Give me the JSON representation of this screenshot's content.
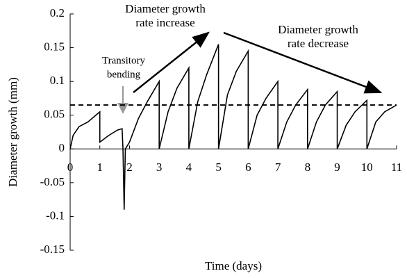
{
  "chart_data": {
    "type": "line",
    "xlabel": "Time (days)",
    "ylabel": "Diameter growth (mm)",
    "xlim": [
      0,
      11
    ],
    "xticks": [
      0,
      1,
      2,
      3,
      4,
      5,
      6,
      7,
      8,
      9,
      10,
      11
    ],
    "ylim": [
      -0.15,
      0.2
    ],
    "yticks": [
      -0.15,
      -0.1,
      -0.05,
      0,
      0.05,
      0.1,
      0.15,
      0.2
    ],
    "reference_line": {
      "value": 0.065,
      "style": "dashed",
      "color": "#000000"
    },
    "annotations": [
      {
        "lines": [
          "Diameter growth",
          "rate increase"
        ],
        "color": "#000000"
      },
      {
        "lines": [
          "Diameter growth",
          "rate decrease"
        ],
        "color": "#000000"
      },
      {
        "lines": [
          "Transitory",
          "bending"
        ],
        "color": "#999999"
      }
    ],
    "series": [
      {
        "color": "#000000",
        "x": [
          0,
          0.1,
          0.3,
          0.6,
          1,
          1,
          1.3,
          1.6,
          1.75,
          1.78,
          1.82,
          1.86,
          2,
          2.3,
          2.6,
          3,
          3,
          3.3,
          3.6,
          4,
          4,
          4.3,
          4.6,
          5,
          5,
          5.3,
          5.6,
          6,
          6,
          6.3,
          6.6,
          7,
          7,
          7.3,
          7.6,
          8,
          8,
          8.3,
          8.6,
          9,
          9,
          9.3,
          9.6,
          10,
          10,
          10.3,
          10.6,
          11
        ],
        "values": [
          0,
          0.02,
          0.033,
          0.04,
          0.055,
          0.01,
          0.02,
          0.028,
          0.03,
          0,
          -0.09,
          0,
          0.01,
          0.045,
          0.07,
          0.1,
          0,
          0.055,
          0.09,
          0.12,
          0,
          0.07,
          0.11,
          0.155,
          0,
          0.08,
          0.115,
          0.145,
          0,
          0.05,
          0.075,
          0.1,
          0,
          0.04,
          0.065,
          0.088,
          0,
          0.04,
          0.065,
          0.085,
          0,
          0.035,
          0.055,
          0.072,
          0,
          0.04,
          0.055,
          0.065
        ]
      }
    ]
  }
}
